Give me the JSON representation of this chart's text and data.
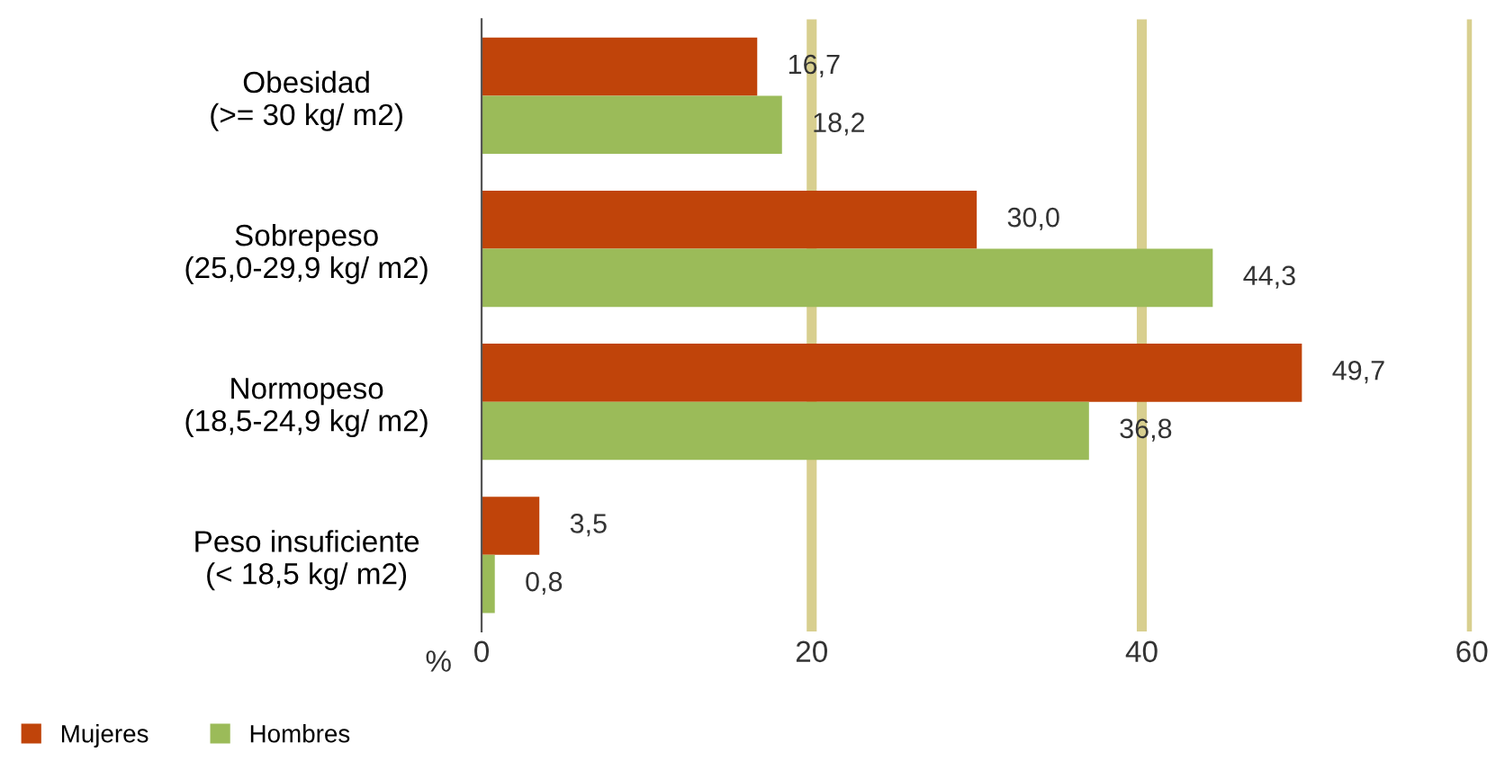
{
  "chart_data": {
    "type": "bar",
    "orientation": "horizontal",
    "xlabel": "%",
    "categories": [
      "Obesidad\n(>= 30 kg/ m2)",
      "Sobrepeso\n(25,0-29,9 kg/ m2)",
      "Normopeso\n(18,5-24,9 kg/ m2)",
      "Peso insuficiente\n(< 18,5 kg/ m2)"
    ],
    "series": [
      {
        "name": "Mujeres",
        "color": "#c0440a",
        "values": [
          16.7,
          30.0,
          49.7,
          3.5
        ],
        "value_labels": [
          "16,7",
          "30,0",
          "49,7",
          "3,5"
        ]
      },
      {
        "name": "Hombres",
        "color": "#9bbb59",
        "values": [
          18.2,
          44.3,
          36.8,
          0.8
        ],
        "value_labels": [
          "18,2",
          "44,3",
          "36,8",
          "0,8"
        ]
      }
    ],
    "xlim": [
      0,
      60
    ],
    "xticks": [
      0,
      20,
      40,
      60
    ],
    "grid": "x",
    "legend": "bottom left"
  }
}
